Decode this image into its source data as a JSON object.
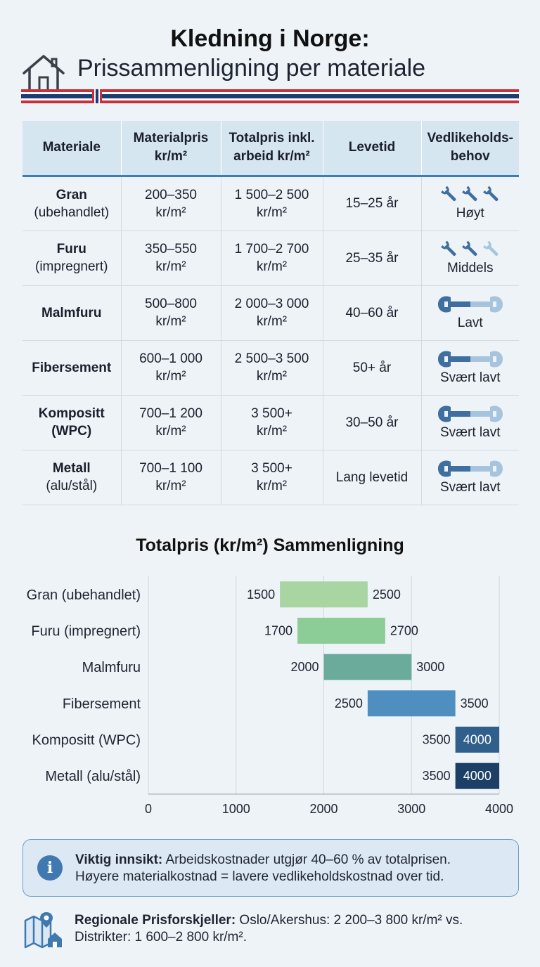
{
  "header": {
    "title": "Kledning i Norge:",
    "subtitle": "Prissammenligning per materiale"
  },
  "table": {
    "headers": [
      "Materiale",
      "Materialpris kr/m²",
      "Totalpris inkl. arbeid kr/m²",
      "Levetid",
      "Vedlikeholds-behov"
    ],
    "header_lines": [
      [
        "Materiale"
      ],
      [
        "Materialpris",
        "kr/m²"
      ],
      [
        "Totalpris inkl.",
        "arbeid kr/m²"
      ],
      [
        "Levetid"
      ],
      [
        "Vedlikeholds-",
        "behov"
      ]
    ],
    "rows": [
      {
        "name": "Gran",
        "sub": "(ubehandlet)",
        "material_price": "200–350",
        "total_price": "1 500–2 500",
        "unit": "kr/m²",
        "lifetime": "15–25 år",
        "maintenance": "Høyt",
        "icon": "wrench-icon",
        "icon_count": 3,
        "icon_active": 3
      },
      {
        "name": "Furu",
        "sub": "(impregnert)",
        "material_price": "350–550",
        "total_price": "1 700–2 700",
        "unit": "kr/m²",
        "lifetime": "25–35 år",
        "maintenance": "Middels",
        "icon": "wrench-icon",
        "icon_count": 3,
        "icon_active": 2
      },
      {
        "name": "Malmfuru",
        "sub": "",
        "material_price": "500–800",
        "total_price": "2 000–3 000",
        "unit": "kr/m²",
        "lifetime": "40–60 år",
        "maintenance": "Lavt",
        "icon": "long-wrench-icon",
        "icon_count": 1,
        "icon_active": 1
      },
      {
        "name": "Fibersement",
        "sub": "",
        "material_price": "600–1 000",
        "total_price": "2 500–3 500",
        "unit": "kr/m²",
        "lifetime": "50+ år",
        "maintenance": "Svært lavt",
        "icon": "long-wrench-icon",
        "icon_count": 1,
        "icon_active": 1
      },
      {
        "name": "Kompositt",
        "sub": "(WPC)",
        "sub_bold": true,
        "material_price": "700–1 200",
        "total_price": "3 500+",
        "unit": "kr/m²",
        "lifetime": "30–50 år",
        "maintenance": "Svært lavt",
        "icon": "long-wrench-icon",
        "icon_count": 1,
        "icon_active": 1
      },
      {
        "name": "Metall",
        "sub": "(alu/stål)",
        "material_price": "700–1 100",
        "total_price": "3 500+",
        "unit": "kr/m²",
        "lifetime": "Lang levetid",
        "maintenance": "Svært lavt",
        "icon": "long-wrench-icon",
        "icon_count": 1,
        "icon_active": 1
      }
    ]
  },
  "chart_data": {
    "type": "bar",
    "title": "Totalpris (kr/m²) Sammenligning",
    "categories": [
      "Gran (ubehandlet)",
      "Furu (impregnert)",
      "Malmfuru",
      "Fibersement",
      "Kompositt (WPC)",
      "Metall (alu/stål)"
    ],
    "ranges": [
      [
        1500,
        2500
      ],
      [
        1700,
        2700
      ],
      [
        2000,
        3000
      ],
      [
        2500,
        3500
      ],
      [
        3500,
        4000
      ],
      [
        3500,
        4000
      ]
    ],
    "colors": [
      "#a8d5a2",
      "#8ccc96",
      "#6aab9c",
      "#4f8fbf",
      "#2f5f8a",
      "#1c3f66"
    ],
    "xlim": [
      0,
      4000
    ],
    "xticks": [
      0,
      1000,
      2000,
      3000,
      4000
    ],
    "grid": true,
    "orientation": "horizontal",
    "label_style_end_inside": [
      false,
      false,
      false,
      false,
      true,
      true
    ]
  },
  "insight": {
    "icon": "info-icon",
    "bold": "Viktig innsikt:",
    "line1": " Arbeidskostnader utgjør 40–60 % av totalprisen.",
    "line2": "Høyere materialkostnad = lavere vedlikeholdskostnad over tid."
  },
  "regional": {
    "icon": "map-pin-house-icon",
    "bold": "Regionale Prisforskjeller:",
    "line1": " Oslo/Akershus: 2 200–3 800 kr/m² vs.",
    "line2": "Distrikter: 1 600–2 800 kr/m²."
  },
  "colors": {
    "accent": "#3e7db0",
    "header_bg": "#d6e6f1",
    "flag_red": "#c8303a",
    "flag_blue": "#1f3b73",
    "wrench_dark": "#3f6f9e",
    "wrench_light": "#a7c4df"
  }
}
